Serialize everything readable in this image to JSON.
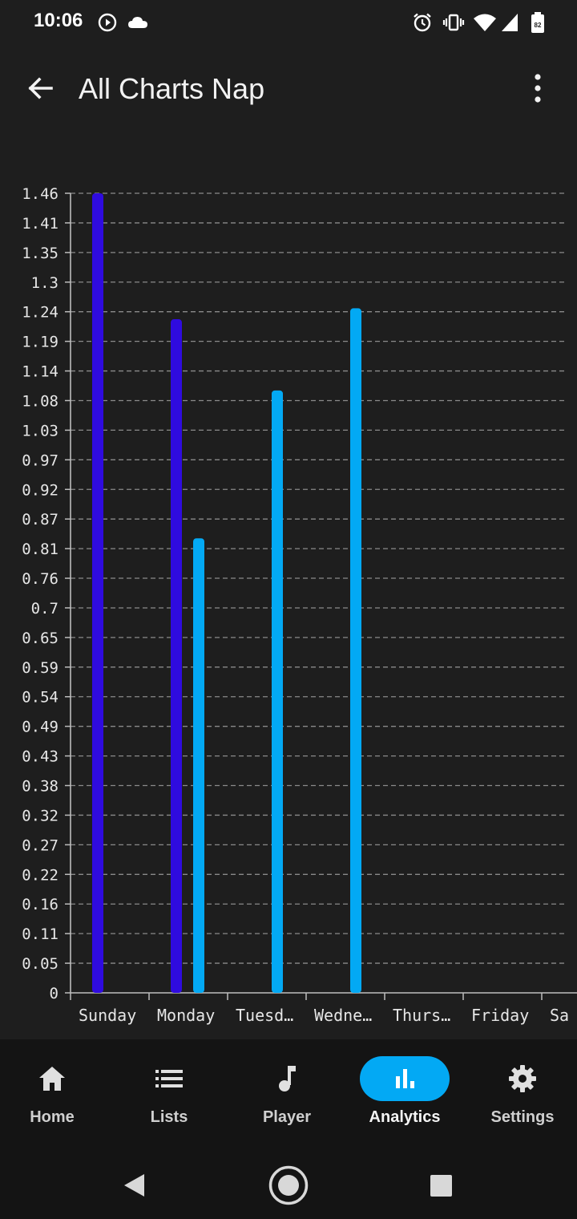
{
  "status_bar": {
    "time": "10:06",
    "left_icons": [
      "play-circle-icon",
      "cloud-icon"
    ],
    "right_icons": [
      "alarm-icon",
      "vibrate-icon",
      "wifi-icon",
      "signal-icon",
      "battery-icon"
    ],
    "battery_level": "82"
  },
  "app_bar": {
    "title": "All Charts Nap",
    "back_icon": "arrow-back-icon",
    "menu_icon": "more-vert-icon"
  },
  "chart_data": {
    "type": "bar",
    "categories": [
      "Sunday",
      "Monday",
      "Tuesd…",
      "Wedne…",
      "Thurs…",
      "Friday",
      "Sa"
    ],
    "series": [
      {
        "color": "#2f0bdf",
        "values": [
          1.46,
          1.23,
          null,
          null,
          null,
          null,
          null
        ]
      },
      {
        "color": "#03a9f4",
        "values": [
          null,
          0.83,
          1.1,
          1.25,
          null,
          null,
          null
        ]
      }
    ],
    "y_ticks": [
      "0",
      "0.05",
      "0.11",
      "0.16",
      "0.22",
      "0.27",
      "0.32",
      "0.38",
      "0.43",
      "0.49",
      "0.54",
      "0.59",
      "0.65",
      "0.7",
      "0.76",
      "0.81",
      "0.87",
      "0.92",
      "0.97",
      "1.03",
      "1.08",
      "1.14",
      "1.19",
      "1.24",
      "1.3",
      "1.35",
      "1.41",
      "1.46"
    ],
    "ylim": [
      0,
      1.46
    ],
    "grid": true,
    "grid_style": "dashed",
    "legend": "none"
  },
  "bottom_nav": {
    "active_index": 3,
    "active_color": "#03a9f4",
    "items": [
      {
        "label": "Home",
        "icon": "home-icon"
      },
      {
        "label": "Lists",
        "icon": "list-icon"
      },
      {
        "label": "Player",
        "icon": "music-note-icon"
      },
      {
        "label": "Analytics",
        "icon": "bar-chart-icon"
      },
      {
        "label": "Settings",
        "icon": "gear-icon"
      }
    ]
  },
  "system_nav": {
    "buttons": [
      "back-triangle-icon",
      "home-circle-icon",
      "recents-square-icon"
    ]
  }
}
